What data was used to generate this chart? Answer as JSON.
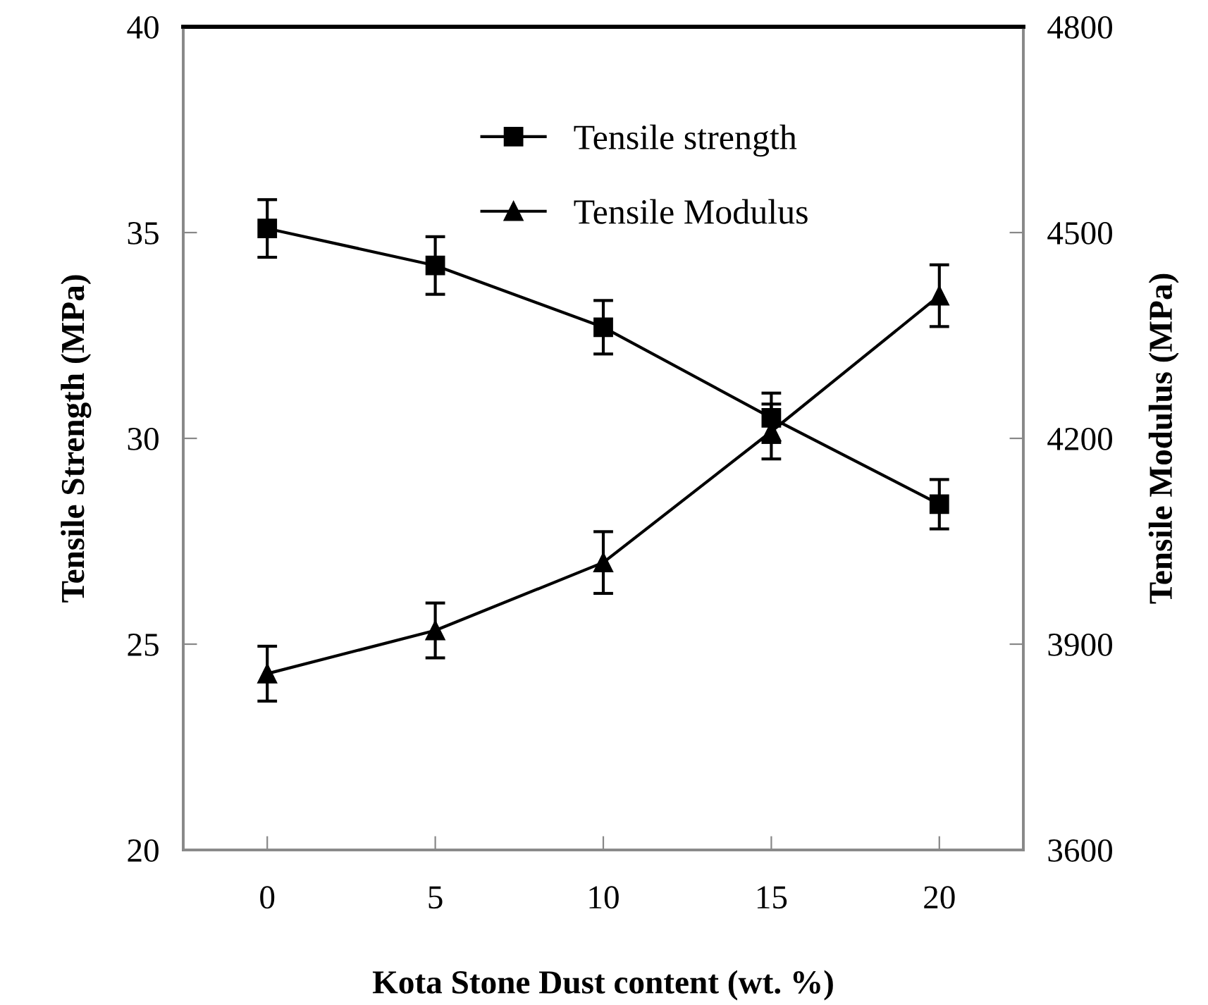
{
  "chart_data": {
    "type": "line",
    "xlabel": "Kota Stone Dust content (wt. %)",
    "ylabel": "Tensile Strength (MPa)",
    "y2label": "Tensile Modulus (MPa)",
    "categories": [
      "0",
      "5",
      "10",
      "15",
      "20"
    ],
    "series": [
      {
        "name": "Tensile strength",
        "color": "#000000",
        "marker": "square",
        "values": [
          35.1,
          34.2,
          32.7,
          30.5,
          28.4
        ],
        "errors": [
          0.7,
          0.7,
          0.65,
          0.6,
          0.6
        ]
      },
      {
        "name": "Tensile Modulus",
        "color": "#000000",
        "marker": "triangle",
        "axis": "y2",
        "values": [
          3857,
          3920,
          4019,
          4210,
          4408
        ],
        "errors": [
          40,
          40,
          45,
          40,
          45
        ]
      }
    ],
    "ylim": [
      20,
      40
    ],
    "yticks": [
      20,
      25,
      30,
      35,
      40
    ],
    "y2lim": [
      3600,
      4800
    ],
    "y2ticks": [
      3600,
      3900,
      4200,
      4500,
      4800
    ],
    "grid": false,
    "legend": "top",
    "line_style": "solid"
  }
}
